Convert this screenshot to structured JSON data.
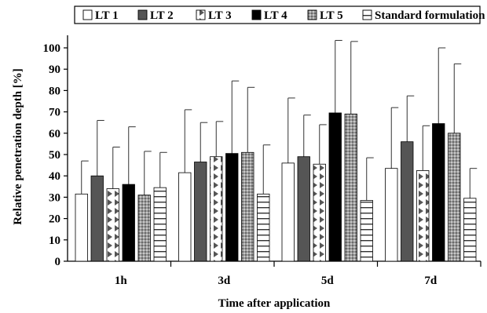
{
  "chart_data": {
    "type": "bar",
    "title": "",
    "xlabel": "Time after application",
    "ylabel": "Relative penetration depth [%]",
    "categories": [
      "1h",
      "3d",
      "5d",
      "7d"
    ],
    "ylim": [
      0,
      100
    ],
    "yticks": [
      0,
      10,
      20,
      30,
      40,
      50,
      60,
      70,
      80,
      90,
      100
    ],
    "legend_position": "top",
    "grid": false,
    "error_bars": "upper standard deviation",
    "series": [
      {
        "name": "LT 1",
        "pattern": "white",
        "values": [
          31.5,
          41.5,
          46,
          43.5
        ],
        "errors": [
          15.5,
          29.5,
          30.5,
          28.5
        ]
      },
      {
        "name": "LT 2",
        "pattern": "dark-gray",
        "values": [
          40,
          46.5,
          49,
          56
        ],
        "errors": [
          26,
          18.5,
          19.5,
          21.5
        ]
      },
      {
        "name": "LT 3",
        "pattern": "triangles",
        "values": [
          34,
          49,
          45.5,
          42.5
        ],
        "errors": [
          19.5,
          16.5,
          18.5,
          21
        ]
      },
      {
        "name": "LT 4",
        "pattern": "black",
        "values": [
          36,
          50.5,
          69.5,
          64.5
        ],
        "errors": [
          27,
          34,
          34,
          35.5
        ]
      },
      {
        "name": "LT 5",
        "pattern": "grid",
        "values": [
          31,
          51,
          69,
          60
        ],
        "errors": [
          20.5,
          30.5,
          34,
          32.5
        ]
      },
      {
        "name": "Standard formulation",
        "pattern": "stripes",
        "values": [
          34.5,
          31.5,
          28.5,
          29.5
        ],
        "errors": [
          16.5,
          23,
          20,
          14
        ]
      }
    ],
    "colors": {
      "white": "#ffffff",
      "dark-gray": "#555555",
      "black": "#000000",
      "grid-fill": "#888888",
      "outline": "#000000"
    }
  }
}
